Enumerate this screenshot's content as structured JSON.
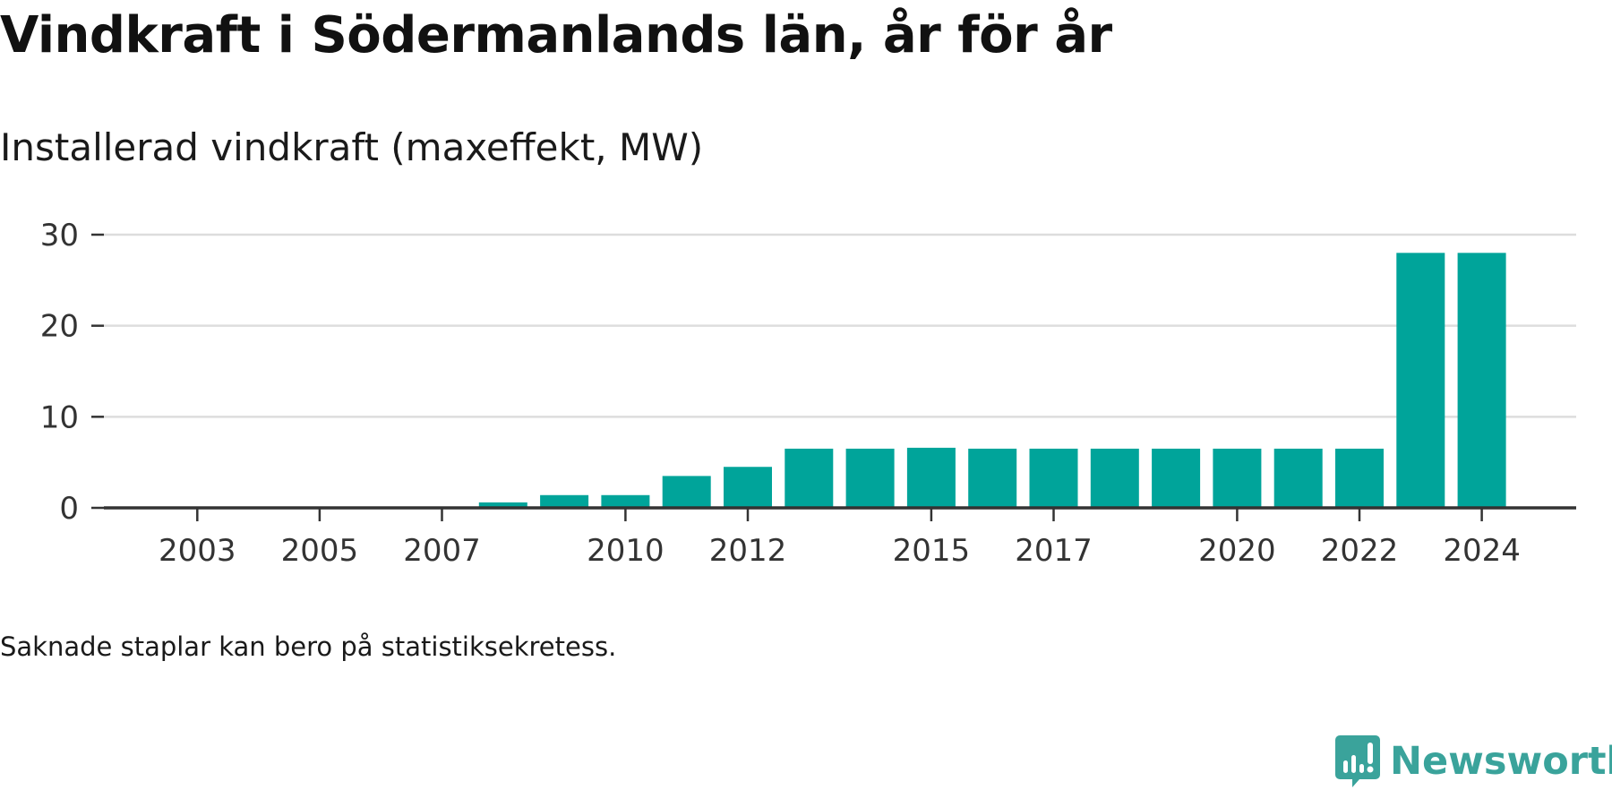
{
  "title": "Vindkraft i Södermanlands län, år för år",
  "subtitle": "Installerad vindkraft (maxeffekt, MW)",
  "note": "Saknade staplar kan bero på statistiksekretess.",
  "brand": {
    "name": "Newsworthy",
    "icon": "newsworthy-logo-icon",
    "color": "#3aa39b"
  },
  "chart_data": {
    "type": "bar",
    "categories": [
      "2002",
      "2003",
      "2004",
      "2005",
      "2006",
      "2007",
      "2008",
      "2009",
      "2010",
      "2011",
      "2012",
      "2013",
      "2014",
      "2015",
      "2016",
      "2017",
      "2018",
      "2019",
      "2020",
      "2021",
      "2022",
      "2023",
      "2024"
    ],
    "values": [
      0,
      0,
      0,
      0,
      0,
      0,
      0.6,
      1.4,
      1.4,
      3.5,
      4.5,
      6.5,
      6.5,
      6.6,
      6.5,
      6.5,
      6.5,
      6.5,
      6.5,
      6.5,
      6.5,
      28,
      28
    ],
    "x_tick_labels": [
      "2003",
      "2005",
      "2007",
      "2010",
      "2012",
      "2015",
      "2017",
      "2020",
      "2022",
      "2024"
    ],
    "y_ticks": [
      0,
      10,
      20,
      30
    ],
    "ylim": [
      0,
      30
    ],
    "grid": true,
    "bar_color": "#00a49a",
    "grid_color": "#dddddd",
    "axis_color": "#333333",
    "xlabel": "",
    "ylabel": ""
  }
}
